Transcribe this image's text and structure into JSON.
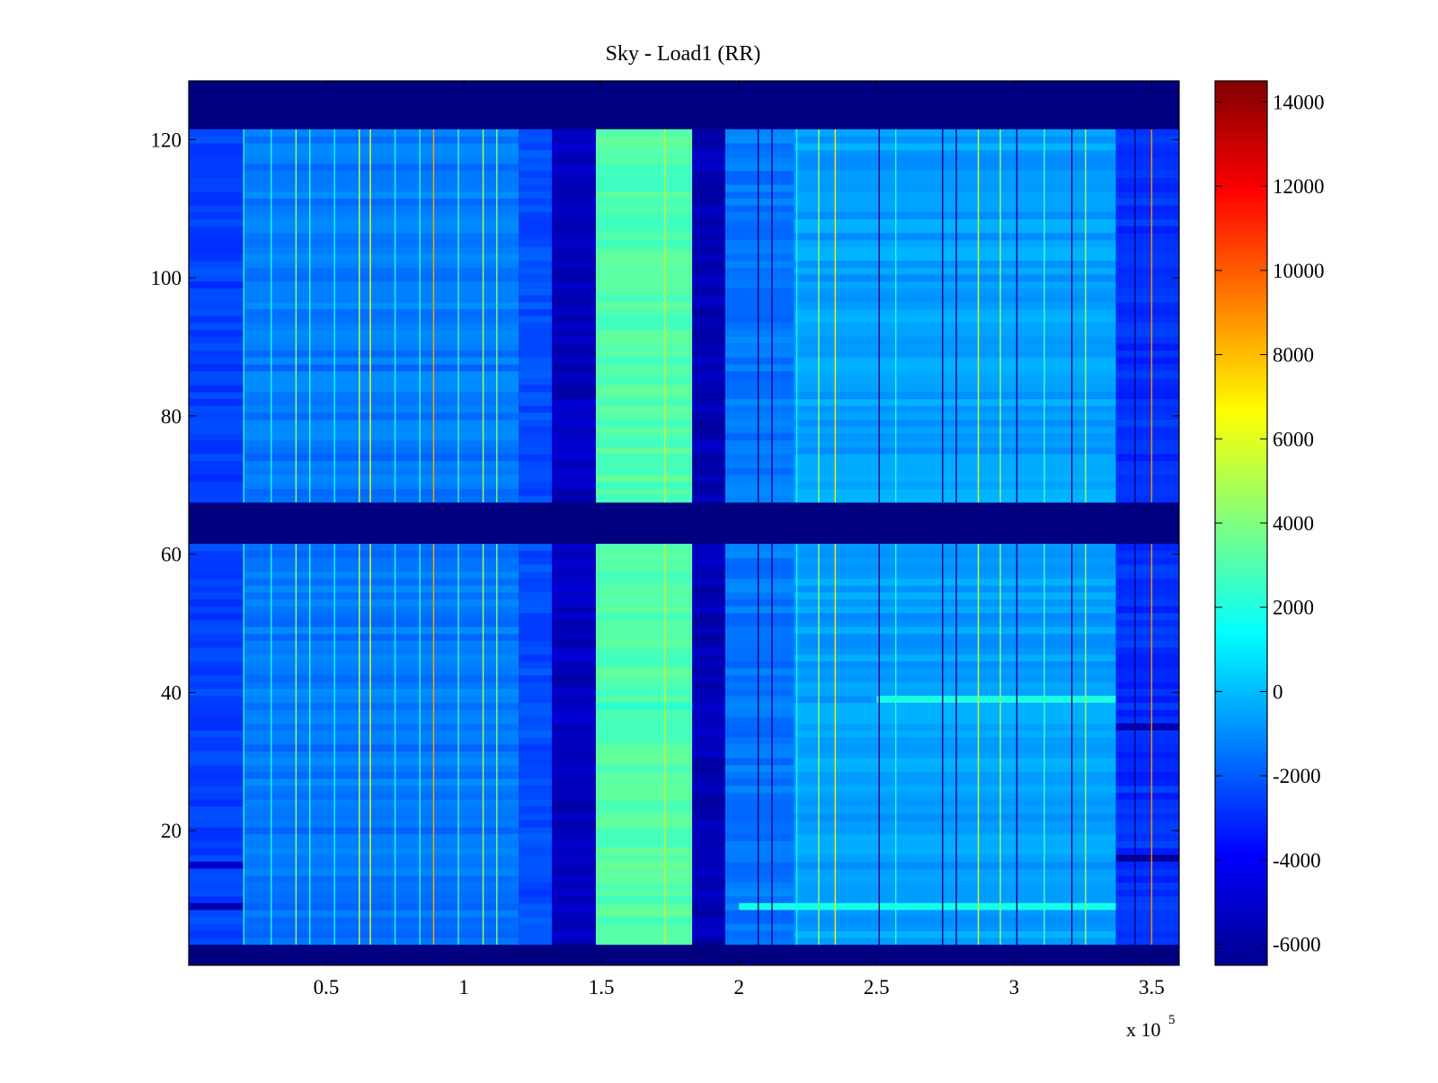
{
  "chart_data": {
    "type": "heatmap",
    "title": "Sky - Load1 (RR)",
    "xlabel": "",
    "ylabel": "",
    "x_exponent_label": "x 10",
    "x_exponent_power": "5",
    "xlim": [
      0,
      3.6
    ],
    "ylim": [
      0.5,
      128.5
    ],
    "x_ticks": [
      0.5,
      1,
      1.5,
      2,
      2.5,
      3,
      3.5
    ],
    "x_tick_labels": [
      "0.5",
      "1",
      "1.5",
      "2",
      "2.5",
      "3",
      "3.5"
    ],
    "y_ticks": [
      20,
      40,
      60,
      80,
      100,
      120
    ],
    "y_tick_labels": [
      "20",
      "40",
      "60",
      "80",
      "100",
      "120"
    ],
    "colorbar": {
      "colormap": "jet",
      "clim": [
        -6500,
        14500
      ],
      "ticks": [
        -6000,
        -4000,
        -2000,
        0,
        2000,
        4000,
        6000,
        8000,
        10000,
        12000,
        14000
      ],
      "tick_labels": [
        "-6000",
        "-4000",
        "-2000",
        "0",
        "2000",
        "4000",
        "6000",
        "8000",
        "10000",
        "12000",
        "14000"
      ]
    },
    "background_value": -6500,
    "masked_row_bands": [
      [
        1,
        3
      ],
      [
        62,
        67
      ],
      [
        122,
        128
      ]
    ],
    "column_bands": [
      {
        "x0": 0.0,
        "x1": 0.2,
        "value": -2600
      },
      {
        "x0": 0.2,
        "x1": 1.2,
        "value": -1400
      },
      {
        "x0": 1.2,
        "x1": 1.32,
        "value": -2300
      },
      {
        "x0": 1.32,
        "x1": 1.48,
        "value": -5200
      },
      {
        "x0": 1.48,
        "x1": 1.83,
        "value": 3100
      },
      {
        "x0": 1.83,
        "x1": 1.95,
        "value": -5400
      },
      {
        "x0": 1.95,
        "x1": 2.2,
        "value": -1400
      },
      {
        "x0": 2.2,
        "x1": 3.37,
        "value": -600
      },
      {
        "x0": 3.37,
        "x1": 3.6,
        "value": -2900
      }
    ],
    "spike_lines": [
      {
        "x": 0.2,
        "value": 2200
      },
      {
        "x": 0.3,
        "value": 1800
      },
      {
        "x": 0.39,
        "value": 4500
      },
      {
        "x": 0.44,
        "value": 2000
      },
      {
        "x": 0.53,
        "value": 1500
      },
      {
        "x": 0.62,
        "value": 5500
      },
      {
        "x": 0.66,
        "value": 6500
      },
      {
        "x": 0.75,
        "value": 1800
      },
      {
        "x": 0.84,
        "value": 2000
      },
      {
        "x": 0.89,
        "value": 8500
      },
      {
        "x": 0.98,
        "value": 2500
      },
      {
        "x": 1.07,
        "value": 5000
      },
      {
        "x": 1.12,
        "value": 4000
      },
      {
        "x": 1.73,
        "value": 5500
      },
      {
        "x": 2.07,
        "value": -6500
      },
      {
        "x": 2.12,
        "value": -6200
      },
      {
        "x": 2.21,
        "value": 1500
      },
      {
        "x": 2.29,
        "value": 4500
      },
      {
        "x": 2.35,
        "value": 7000
      },
      {
        "x": 2.51,
        "value": -6500
      },
      {
        "x": 2.57,
        "value": 2000
      },
      {
        "x": 2.74,
        "value": -6500
      },
      {
        "x": 2.79,
        "value": -6500
      },
      {
        "x": 2.87,
        "value": 6000
      },
      {
        "x": 2.95,
        "value": 4500
      },
      {
        "x": 3.01,
        "value": -6500
      },
      {
        "x": 3.11,
        "value": 3000
      },
      {
        "x": 3.21,
        "value": -6400
      },
      {
        "x": 3.26,
        "value": 4500
      },
      {
        "x": 3.44,
        "value": -6500
      },
      {
        "x": 3.5,
        "value": 9000
      }
    ],
    "horizontal_features": [
      {
        "y": 39,
        "x0": 2.5,
        "x1": 3.37,
        "value": 2000
      },
      {
        "y": 9,
        "x0": 2.0,
        "x1": 3.37,
        "value": 1800
      },
      {
        "y": 9,
        "x0": 0.0,
        "x1": 0.2,
        "value": -5500
      },
      {
        "y": 15,
        "x0": 0.0,
        "x1": 0.2,
        "value": -5000
      },
      {
        "y": 16,
        "x0": 3.37,
        "x1": 3.6,
        "value": -6000
      },
      {
        "y": 35,
        "x0": 3.37,
        "x1": 3.6,
        "value": -5500
      },
      {
        "y": 38,
        "x0": 1.48,
        "x1": 1.83,
        "value": 2200
      }
    ]
  }
}
